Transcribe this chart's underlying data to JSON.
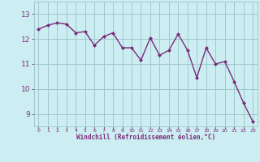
{
  "x": [
    0,
    1,
    2,
    3,
    4,
    5,
    6,
    7,
    8,
    9,
    10,
    11,
    12,
    13,
    14,
    15,
    16,
    17,
    18,
    19,
    20,
    21,
    22,
    23
  ],
  "y": [
    12.4,
    12.55,
    12.65,
    12.6,
    12.25,
    12.3,
    11.75,
    12.1,
    12.25,
    11.65,
    11.65,
    11.15,
    12.05,
    11.35,
    11.55,
    12.2,
    11.55,
    10.45,
    11.65,
    11.0,
    11.1,
    10.3,
    9.45,
    8.7
  ],
  "line_color": "#7b2b7b",
  "marker_color": "#7b2b7b",
  "bg_color": "#cceef2",
  "grid_color": "#a0c8cc",
  "xlabel": "Windchill (Refroidissement éolien,°C)",
  "xlabel_color": "#7b2b7b",
  "tick_color": "#7b2b7b",
  "ylim": [
    8.5,
    13.5
  ],
  "yticks": [
    9,
    10,
    11,
    12,
    13
  ],
  "xtick_labels": [
    "0",
    "1",
    "2",
    "3",
    "4",
    "5",
    "6",
    "7",
    "8",
    "9",
    "10",
    "11",
    "12",
    "13",
    "14",
    "15",
    "16",
    "17",
    "18",
    "19",
    "20",
    "21",
    "22",
    "23"
  ],
  "line_width": 1.0,
  "marker_size": 2.5
}
